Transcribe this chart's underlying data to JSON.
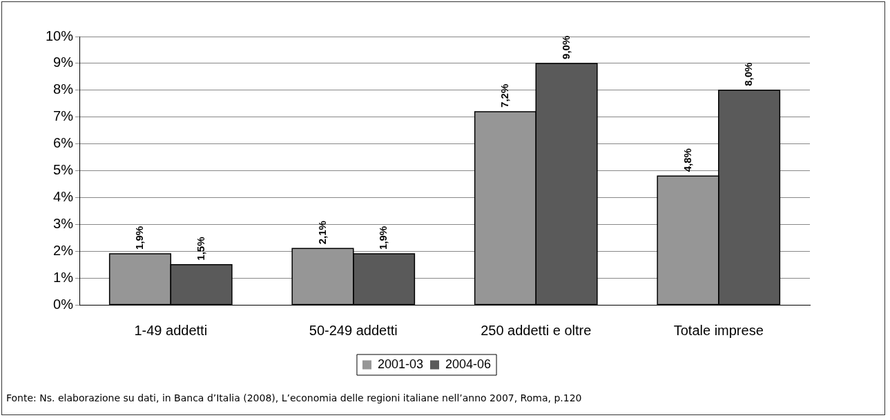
{
  "chart_data": {
    "type": "bar",
    "categories": [
      "1-49 addetti",
      "50-249 addetti",
      "250 addetti e oltre",
      "Totale imprese"
    ],
    "series": [
      {
        "name": "2001-03",
        "color": "#969696",
        "values": [
          1.9,
          2.1,
          7.2,
          4.8
        ],
        "value_labels": [
          "1,9%",
          "2,1%",
          "7,2%",
          "4,8%"
        ]
      },
      {
        "name": "2004-06",
        "color": "#5a5a5a",
        "values": [
          1.5,
          1.9,
          9.0,
          8.0
        ],
        "value_labels": [
          "1,5%",
          "1,9%",
          "9,0%",
          "8,0%"
        ]
      }
    ],
    "ylim": [
      0,
      10
    ],
    "yticks": [
      {
        "value": 0,
        "label": "0%"
      },
      {
        "value": 1,
        "label": "1%"
      },
      {
        "value": 2,
        "label": "2%"
      },
      {
        "value": 3,
        "label": "3%"
      },
      {
        "value": 4,
        "label": "4%"
      },
      {
        "value": 5,
        "label": "5%"
      },
      {
        "value": 6,
        "label": "6%"
      },
      {
        "value": 7,
        "label": "7%"
      },
      {
        "value": 8,
        "label": "8%"
      },
      {
        "value": 9,
        "label": "9%"
      },
      {
        "value": 10,
        "label": "10%"
      }
    ],
    "grid": "y",
    "legend": "bottom",
    "annotations": [
      "Fonte: Ns. elaborazione su dati, in Banca d’Italia (2008), L’economia delle regioni italiane nell’anno 2007, Roma, p.120"
    ]
  }
}
